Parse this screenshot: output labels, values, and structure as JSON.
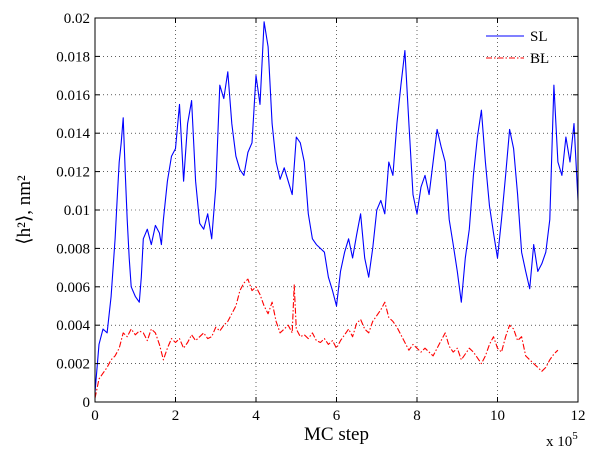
{
  "chart_data": {
    "type": "line",
    "xlabel": "MC step",
    "ylabel": "⟨h²⟩, nm²",
    "x_multiplier_label": "x 10",
    "x_multiplier_exp": "5",
    "xlim": [
      0,
      12
    ],
    "ylim": [
      0,
      0.02
    ],
    "x_ticks": [
      "0",
      "2",
      "4",
      "6",
      "8",
      "10",
      "12"
    ],
    "y_ticks": [
      "0",
      "0.002",
      "0.004",
      "0.006",
      "0.008",
      "0.01",
      "0.012",
      "0.014",
      "0.016",
      "0.018",
      "0.02"
    ],
    "grid": true,
    "legend_position": "top-right",
    "series": [
      {
        "name": "SL",
        "color": "#0000ff",
        "style": "solid",
        "points": [
          [
            0,
            0.0005
          ],
          [
            0.1,
            0.003
          ],
          [
            0.2,
            0.0038
          ],
          [
            0.3,
            0.0036
          ],
          [
            0.4,
            0.0055
          ],
          [
            0.5,
            0.0085
          ],
          [
            0.55,
            0.0105
          ],
          [
            0.6,
            0.0125
          ],
          [
            0.65,
            0.0135
          ],
          [
            0.7,
            0.0148
          ],
          [
            0.75,
            0.012
          ],
          [
            0.8,
            0.0095
          ],
          [
            0.85,
            0.0075
          ],
          [
            0.9,
            0.006
          ],
          [
            1.0,
            0.0055
          ],
          [
            1.1,
            0.0052
          ],
          [
            1.15,
            0.0065
          ],
          [
            1.2,
            0.0085
          ],
          [
            1.3,
            0.009
          ],
          [
            1.4,
            0.0082
          ],
          [
            1.5,
            0.0092
          ],
          [
            1.6,
            0.0088
          ],
          [
            1.65,
            0.0082
          ],
          [
            1.7,
            0.0095
          ],
          [
            1.8,
            0.0115
          ],
          [
            1.9,
            0.0128
          ],
          [
            2.0,
            0.0132
          ],
          [
            2.1,
            0.0155
          ],
          [
            2.2,
            0.0115
          ],
          [
            2.3,
            0.0145
          ],
          [
            2.4,
            0.0157
          ],
          [
            2.5,
            0.0115
          ],
          [
            2.6,
            0.0093
          ],
          [
            2.7,
            0.009
          ],
          [
            2.8,
            0.0098
          ],
          [
            2.9,
            0.0085
          ],
          [
            3.0,
            0.0112
          ],
          [
            3.1,
            0.0165
          ],
          [
            3.2,
            0.0158
          ],
          [
            3.3,
            0.0172
          ],
          [
            3.4,
            0.0145
          ],
          [
            3.5,
            0.0128
          ],
          [
            3.6,
            0.0121
          ],
          [
            3.7,
            0.0118
          ],
          [
            3.8,
            0.013
          ],
          [
            3.9,
            0.0135
          ],
          [
            4.0,
            0.017
          ],
          [
            4.1,
            0.0155
          ],
          [
            4.2,
            0.0198
          ],
          [
            4.3,
            0.0185
          ],
          [
            4.4,
            0.0145
          ],
          [
            4.5,
            0.0125
          ],
          [
            4.6,
            0.0116
          ],
          [
            4.7,
            0.0122
          ],
          [
            4.8,
            0.0115
          ],
          [
            4.9,
            0.0108
          ],
          [
            5.0,
            0.0138
          ],
          [
            5.1,
            0.0135
          ],
          [
            5.2,
            0.0125
          ],
          [
            5.3,
            0.0098
          ],
          [
            5.4,
            0.0085
          ],
          [
            5.5,
            0.0082
          ],
          [
            5.6,
            0.008
          ],
          [
            5.7,
            0.0078
          ],
          [
            5.8,
            0.0065
          ],
          [
            5.9,
            0.0058
          ],
          [
            6.0,
            0.005
          ],
          [
            6.1,
            0.0068
          ],
          [
            6.2,
            0.0078
          ],
          [
            6.3,
            0.0085
          ],
          [
            6.4,
            0.0075
          ],
          [
            6.5,
            0.0087
          ],
          [
            6.6,
            0.0098
          ],
          [
            6.7,
            0.0075
          ],
          [
            6.8,
            0.0065
          ],
          [
            6.9,
            0.008
          ],
          [
            7.0,
            0.01
          ],
          [
            7.1,
            0.0105
          ],
          [
            7.2,
            0.0098
          ],
          [
            7.3,
            0.0125
          ],
          [
            7.4,
            0.0118
          ],
          [
            7.5,
            0.0145
          ],
          [
            7.6,
            0.0165
          ],
          [
            7.7,
            0.0183
          ],
          [
            7.8,
            0.0145
          ],
          [
            7.9,
            0.0108
          ],
          [
            8.0,
            0.0098
          ],
          [
            8.1,
            0.0112
          ],
          [
            8.2,
            0.0118
          ],
          [
            8.3,
            0.0108
          ],
          [
            8.4,
            0.0125
          ],
          [
            8.5,
            0.0142
          ],
          [
            8.6,
            0.0133
          ],
          [
            8.7,
            0.0125
          ],
          [
            8.8,
            0.0095
          ],
          [
            8.9,
            0.0082
          ],
          [
            9.0,
            0.0068
          ],
          [
            9.1,
            0.0052
          ],
          [
            9.2,
            0.0075
          ],
          [
            9.3,
            0.009
          ],
          [
            9.4,
            0.0118
          ],
          [
            9.5,
            0.0138
          ],
          [
            9.6,
            0.0152
          ],
          [
            9.7,
            0.0125
          ],
          [
            9.8,
            0.0102
          ],
          [
            9.9,
            0.0088
          ],
          [
            10.0,
            0.0075
          ],
          [
            10.1,
            0.0095
          ],
          [
            10.2,
            0.0118
          ],
          [
            10.3,
            0.0142
          ],
          [
            10.4,
            0.0132
          ],
          [
            10.5,
            0.0108
          ],
          [
            10.6,
            0.0078
          ],
          [
            10.7,
            0.0068
          ],
          [
            10.8,
            0.0059
          ],
          [
            10.9,
            0.0082
          ],
          [
            11.0,
            0.0068
          ],
          [
            11.1,
            0.0072
          ],
          [
            11.2,
            0.0078
          ],
          [
            11.3,
            0.0095
          ],
          [
            11.4,
            0.0165
          ],
          [
            11.5,
            0.0125
          ],
          [
            11.6,
            0.0118
          ],
          [
            11.7,
            0.0138
          ],
          [
            11.8,
            0.0125
          ],
          [
            11.9,
            0.0145
          ],
          [
            12.0,
            0.0105
          ]
        ]
      },
      {
        "name": "BL",
        "color": "#ff0000",
        "style": "dashdot",
        "points": [
          [
            0,
            0.0002
          ],
          [
            0.1,
            0.0012
          ],
          [
            0.2,
            0.0015
          ],
          [
            0.3,
            0.0018
          ],
          [
            0.4,
            0.0022
          ],
          [
            0.5,
            0.0024
          ],
          [
            0.6,
            0.0028
          ],
          [
            0.7,
            0.0036
          ],
          [
            0.8,
            0.0034
          ],
          [
            0.9,
            0.0038
          ],
          [
            1.0,
            0.0035
          ],
          [
            1.1,
            0.0037
          ],
          [
            1.2,
            0.0036
          ],
          [
            1.3,
            0.0032
          ],
          [
            1.4,
            0.0038
          ],
          [
            1.5,
            0.0036
          ],
          [
            1.6,
            0.003
          ],
          [
            1.7,
            0.0022
          ],
          [
            1.8,
            0.0028
          ],
          [
            1.9,
            0.0033
          ],
          [
            2.0,
            0.0031
          ],
          [
            2.1,
            0.0033
          ],
          [
            2.2,
            0.0028
          ],
          [
            2.3,
            0.0031
          ],
          [
            2.4,
            0.0035
          ],
          [
            2.5,
            0.0032
          ],
          [
            2.6,
            0.0034
          ],
          [
            2.7,
            0.0036
          ],
          [
            2.8,
            0.0033
          ],
          [
            2.9,
            0.0034
          ],
          [
            3.0,
            0.0039
          ],
          [
            3.1,
            0.0037
          ],
          [
            3.2,
            0.004
          ],
          [
            3.3,
            0.0042
          ],
          [
            3.4,
            0.0046
          ],
          [
            3.5,
            0.005
          ],
          [
            3.6,
            0.0058
          ],
          [
            3.7,
            0.0062
          ],
          [
            3.8,
            0.0064
          ],
          [
            3.9,
            0.0058
          ],
          [
            4.0,
            0.006
          ],
          [
            4.1,
            0.0056
          ],
          [
            4.2,
            0.005
          ],
          [
            4.3,
            0.0046
          ],
          [
            4.4,
            0.0052
          ],
          [
            4.5,
            0.0042
          ],
          [
            4.6,
            0.0036
          ],
          [
            4.7,
            0.0038
          ],
          [
            4.8,
            0.004
          ],
          [
            4.9,
            0.0036
          ],
          [
            4.95,
            0.0061
          ],
          [
            5.0,
            0.0038
          ],
          [
            5.1,
            0.0034
          ],
          [
            5.2,
            0.0035
          ],
          [
            5.3,
            0.0033
          ],
          [
            5.4,
            0.0036
          ],
          [
            5.5,
            0.0032
          ],
          [
            5.6,
            0.0031
          ],
          [
            5.7,
            0.0033
          ],
          [
            5.8,
            0.003
          ],
          [
            5.9,
            0.0032
          ],
          [
            6.0,
            0.0028
          ],
          [
            6.1,
            0.0032
          ],
          [
            6.2,
            0.0035
          ],
          [
            6.3,
            0.0038
          ],
          [
            6.4,
            0.0034
          ],
          [
            6.5,
            0.0041
          ],
          [
            6.6,
            0.0043
          ],
          [
            6.7,
            0.0038
          ],
          [
            6.8,
            0.0036
          ],
          [
            6.9,
            0.0042
          ],
          [
            7.0,
            0.0045
          ],
          [
            7.1,
            0.0048
          ],
          [
            7.2,
            0.0052
          ],
          [
            7.3,
            0.0044
          ],
          [
            7.4,
            0.0042
          ],
          [
            7.5,
            0.0039
          ],
          [
            7.6,
            0.0035
          ],
          [
            7.7,
            0.0031
          ],
          [
            7.8,
            0.0027
          ],
          [
            7.9,
            0.003
          ],
          [
            8.0,
            0.0028
          ],
          [
            8.1,
            0.0026
          ],
          [
            8.2,
            0.0028
          ],
          [
            8.3,
            0.0026
          ],
          [
            8.4,
            0.0024
          ],
          [
            8.5,
            0.0028
          ],
          [
            8.6,
            0.0032
          ],
          [
            8.7,
            0.0036
          ],
          [
            8.8,
            0.0029
          ],
          [
            8.9,
            0.0026
          ],
          [
            9.0,
            0.0028
          ],
          [
            9.1,
            0.0022
          ],
          [
            9.2,
            0.0025
          ],
          [
            9.3,
            0.0028
          ],
          [
            9.4,
            0.0026
          ],
          [
            9.5,
            0.0023
          ],
          [
            9.6,
            0.002
          ],
          [
            9.7,
            0.0024
          ],
          [
            9.8,
            0.003
          ],
          [
            9.9,
            0.0034
          ],
          [
            10.0,
            0.0028
          ],
          [
            10.1,
            0.0026
          ],
          [
            10.2,
            0.0034
          ],
          [
            10.3,
            0.004
          ],
          [
            10.4,
            0.0038
          ],
          [
            10.5,
            0.0032
          ],
          [
            10.6,
            0.0034
          ],
          [
            10.7,
            0.0024
          ],
          [
            10.8,
            0.0022
          ],
          [
            10.9,
            0.002
          ],
          [
            11.0,
            0.0018
          ],
          [
            11.1,
            0.0016
          ],
          [
            11.2,
            0.0018
          ],
          [
            11.3,
            0.0022
          ],
          [
            11.4,
            0.0025
          ],
          [
            11.5,
            0.0027
          ]
        ]
      }
    ]
  }
}
